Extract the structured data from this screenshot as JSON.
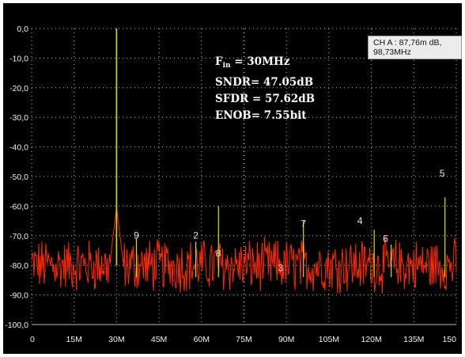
{
  "marker_readout": "CH A : 87,76m dB, 98,73MHz",
  "annotations": {
    "fin_prefix": "F",
    "fin_sub": "in",
    "fin_value": "= 30MHz",
    "sndr": "SNDR= 47.05dB",
    "sfdr": "SFDR = 57.62dB",
    "enob": "ENOB= 7.55bit"
  },
  "colors": {
    "background": "#000000",
    "grid": "#bdbdbd",
    "noise_trace": "#ff2a00",
    "spur_trace": "#d8e000",
    "axis_text": "#f0f0f0"
  },
  "chart_data": {
    "type": "line",
    "title": "",
    "xlabel": "",
    "ylabel": "",
    "xlim": [
      0,
      150
    ],
    "ylim": [
      -100,
      0
    ],
    "x_ticks": [
      "0",
      "15M",
      "30M",
      "45M",
      "60M",
      "75M",
      "90M",
      "105M",
      "120M",
      "135M",
      "150"
    ],
    "y_ticks": [
      "0,0",
      "-10,0",
      "-20,0",
      "-30,0",
      "-40,0",
      "-50,0",
      "-60,0",
      "-70,0",
      "-80,0",
      "-90,0",
      "-100,0"
    ],
    "grid": true,
    "noise_floor_db": -80,
    "noise_spread_db": 8,
    "series": [
      {
        "values": [
          {
            "x": 30,
            "y": 0
          },
          {
            "x": 37,
            "y": -71
          },
          {
            "x": 58,
            "y": -72
          },
          {
            "x": 66,
            "y": -60
          },
          {
            "x": 96,
            "y": -65
          },
          {
            "x": 121,
            "y": -68
          },
          {
            "x": 127,
            "y": -73
          },
          {
            "x": 146,
            "y": -57
          }
        ]
      }
    ],
    "harmonic_labels": [
      {
        "text": "9",
        "x": 37,
        "y": -71
      },
      {
        "text": "2",
        "x": 58,
        "y": -71
      },
      {
        "text": "8",
        "x": 66,
        "y": -77
      },
      {
        "text": "3",
        "x": 88,
        "y": -82
      },
      {
        "text": "7",
        "x": 96,
        "y": -67
      },
      {
        "text": "4",
        "x": 116,
        "y": -66
      },
      {
        "text": "6",
        "x": 125,
        "y": -72
      },
      {
        "text": "5",
        "x": 145,
        "y": -50
      }
    ]
  }
}
